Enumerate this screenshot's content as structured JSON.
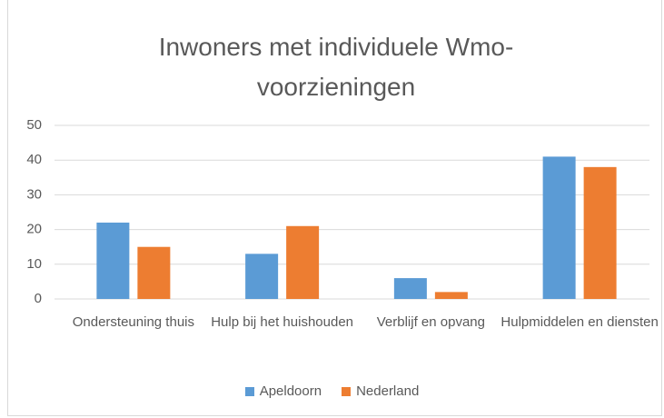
{
  "chart_data": {
    "type": "bar",
    "title": "Inwoners met individuele Wmo-voorzieningen",
    "categories": [
      "Ondersteuning thuis",
      "Hulp bij het huishouden",
      "Verblijf en opvang",
      "Hulpmiddelen en diensten"
    ],
    "series": [
      {
        "name": "Apeldoorn",
        "color": "#5b9bd5",
        "values": [
          22,
          13,
          6,
          41
        ]
      },
      {
        "name": "Nederland",
        "color": "#ed7d31",
        "values": [
          15,
          21,
          2,
          38
        ]
      }
    ],
    "ylim": [
      0,
      50
    ],
    "yticks": [
      0,
      10,
      20,
      30,
      40,
      50
    ],
    "grid": true,
    "legend": "bottom"
  }
}
